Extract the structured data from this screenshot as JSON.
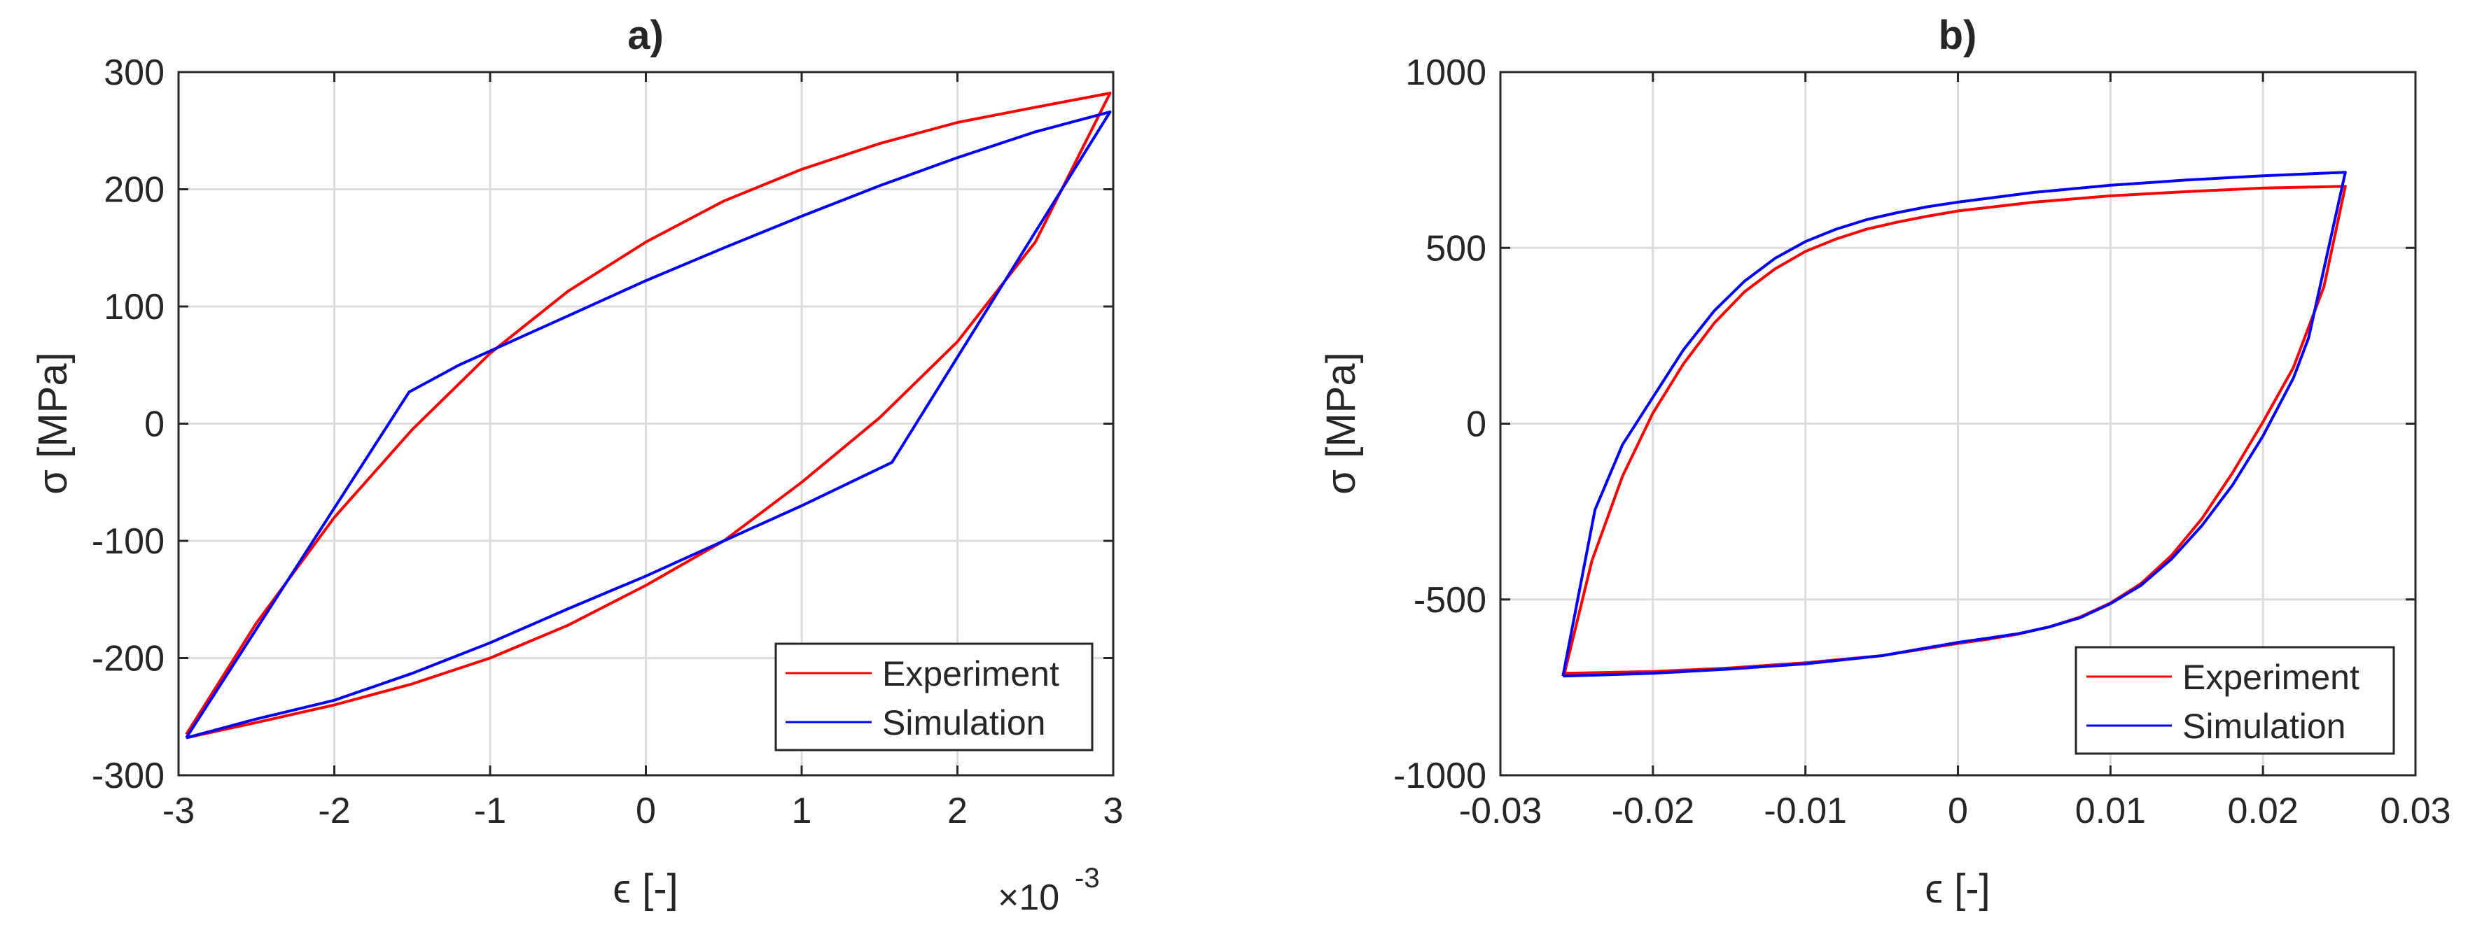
{
  "chart_data": [
    {
      "type": "line",
      "title": "a)",
      "xlabel": "ϵ [-]",
      "ylabel": "σ [MPa]",
      "x_exponent_label": "×10",
      "x_exponent_power": "-3",
      "xlim": [
        -3,
        3
      ],
      "ylim": [
        -300,
        300
      ],
      "xticks": [
        -3,
        -2,
        -1,
        0,
        1,
        2,
        3
      ],
      "yticks": [
        -300,
        -200,
        -100,
        0,
        100,
        200,
        300
      ],
      "xtick_labels": [
        "-3",
        "-2",
        "-1",
        "0",
        "1",
        "2",
        "3"
      ],
      "ytick_labels": [
        "-300",
        "-200",
        "-100",
        "0",
        "100",
        "200",
        "300"
      ],
      "grid": true,
      "legend_position": "bottom-right",
      "series": [
        {
          "name": "Experiment",
          "color": "#ff0000",
          "x": [
            -2.95,
            -2.5,
            -2.0,
            -1.5,
            -1.0,
            -0.5,
            0.0,
            0.5,
            1.0,
            1.5,
            2.0,
            2.5,
            2.98,
            2.5,
            2.0,
            1.5,
            1.0,
            0.5,
            0.0,
            -0.5,
            -1.0,
            -1.5,
            -2.0,
            -2.5,
            -2.95
          ],
          "y": [
            -265,
            -170,
            -80,
            -5,
            60,
            113,
            155,
            190,
            217,
            239,
            257,
            270,
            282,
            155,
            70,
            5,
            -50,
            -100,
            -138,
            -172,
            -200,
            -222,
            -240,
            -255,
            -268
          ]
        },
        {
          "name": "Simulation",
          "color": "#0000ff",
          "x": [
            -2.95,
            -1.52,
            -1.2,
            -0.5,
            0.0,
            0.5,
            1.0,
            1.5,
            2.0,
            2.5,
            2.98,
            1.58,
            1.0,
            0.5,
            0.0,
            -0.5,
            -1.0,
            -1.5,
            -2.0,
            -2.5,
            -2.95
          ],
          "y": [
            -268,
            27,
            50,
            92,
            122,
            150,
            177,
            203,
            227,
            249,
            266,
            -33,
            -70,
            -100,
            -130,
            -158,
            -187,
            -213,
            -236,
            -252,
            -268
          ]
        }
      ]
    },
    {
      "type": "line",
      "title": "b)",
      "xlabel": "ϵ [-]",
      "ylabel": "σ [MPa]",
      "xlim": [
        -0.03,
        0.03
      ],
      "ylim": [
        -1000,
        1000
      ],
      "xticks": [
        -0.03,
        -0.02,
        -0.01,
        0,
        0.01,
        0.02,
        0.03
      ],
      "yticks": [
        -1000,
        -500,
        0,
        500,
        1000
      ],
      "xtick_labels": [
        "-0.03",
        "-0.02",
        "-0.01",
        "0",
        "0.01",
        "0.02",
        "0.03"
      ],
      "ytick_labels": [
        "-1000",
        "-500",
        "0",
        "500",
        "1000"
      ],
      "grid": true,
      "legend_position": "bottom-right",
      "series": [
        {
          "name": "Experiment",
          "color": "#ff0000",
          "x": [
            -0.0258,
            -0.024,
            -0.022,
            -0.02,
            -0.018,
            -0.016,
            -0.014,
            -0.012,
            -0.01,
            -0.008,
            -0.006,
            -0.004,
            -0.002,
            0.0,
            0.005,
            0.01,
            0.015,
            0.02,
            0.0254,
            0.024,
            0.022,
            0.02,
            0.018,
            0.016,
            0.014,
            0.012,
            0.01,
            0.008,
            0.006,
            0.004,
            0.002,
            0.0,
            -0.005,
            -0.01,
            -0.015,
            -0.02,
            -0.0258
          ],
          "y": [
            -710,
            -390,
            -150,
            30,
            170,
            285,
            375,
            440,
            490,
            525,
            553,
            573,
            590,
            605,
            630,
            648,
            660,
            670,
            675,
            390,
            160,
            5,
            -140,
            -270,
            -375,
            -455,
            -510,
            -550,
            -578,
            -598,
            -613,
            -625,
            -660,
            -680,
            -695,
            -705,
            -710
          ]
        },
        {
          "name": "Simulation",
          "color": "#0000ff",
          "x": [
            -0.0259,
            -0.0238,
            -0.022,
            -0.02,
            -0.018,
            -0.016,
            -0.014,
            -0.012,
            -0.01,
            -0.008,
            -0.006,
            -0.004,
            -0.002,
            0.0,
            0.005,
            0.01,
            0.015,
            0.02,
            0.0254,
            0.023,
            0.022,
            0.02,
            0.018,
            0.016,
            0.014,
            0.012,
            0.01,
            0.008,
            0.006,
            0.004,
            0.002,
            0.0,
            -0.005,
            -0.01,
            -0.015,
            -0.02,
            -0.0259
          ],
          "y": [
            -718,
            -245,
            -60,
            75,
            210,
            320,
            405,
            470,
            518,
            553,
            580,
            600,
            617,
            630,
            658,
            678,
            693,
            705,
            715,
            245,
            130,
            -35,
            -175,
            -290,
            -385,
            -460,
            -512,
            -552,
            -578,
            -597,
            -610,
            -622,
            -660,
            -683,
            -698,
            -710,
            -718
          ]
        }
      ]
    }
  ]
}
